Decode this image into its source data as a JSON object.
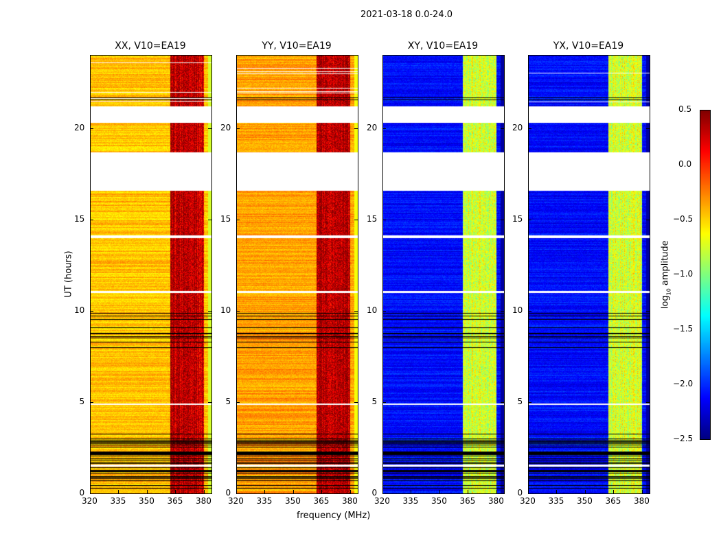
{
  "chart_data": {
    "type": "heatmap",
    "title": "2021-03-18 0.0-24.0",
    "xlabel": "frequency (MHz)",
    "ylabel": "UT (hours)",
    "xlim": [
      320,
      384
    ],
    "ylim": [
      0,
      24
    ],
    "xticks": [
      "320",
      "335",
      "350",
      "365",
      "380"
    ],
    "yticks": [
      "0",
      "5",
      "10",
      "15",
      "20"
    ],
    "colorbar": {
      "label": "log10 amplitude",
      "label_main": "log",
      "label_sub": "10",
      "label_tail": " amplitude",
      "range": [
        -2.5,
        0.5
      ],
      "ticks": [
        "0.5",
        "0.0",
        "−0.5",
        "−1.0",
        "−1.5",
        "−2.0",
        "−2.5"
      ],
      "colormap": "jet"
    },
    "flagged_white_hours": [
      [
        16.6,
        18.7
      ],
      [
        20.3,
        21.2
      ],
      [
        14.0,
        14.15
      ],
      [
        11.0,
        11.1
      ],
      [
        4.85,
        4.95
      ],
      [
        1.5,
        1.6
      ]
    ],
    "black_line_regions_hours": [
      [
        0.2,
        3.5
      ],
      [
        7.8,
        10.2
      ],
      [
        21.5,
        21.7
      ]
    ],
    "panels": [
      {
        "name": "XX, V10=EA19",
        "base": -0.45,
        "rfi_band_mhz": [
          362,
          380
        ],
        "rfi_level": 0.15
      },
      {
        "name": "YY, V10=EA19",
        "base": -0.35,
        "rfi_band_mhz": [
          362,
          380
        ],
        "rfi_level": 0.2
      },
      {
        "name": "XY, V10=EA19",
        "base": -2.1,
        "rfi_band_mhz": [
          362,
          380
        ],
        "rfi_level": -0.9
      },
      {
        "name": "YX, V10=EA19",
        "base": -2.1,
        "rfi_band_mhz": [
          362,
          380
        ],
        "rfi_level": -0.9
      }
    ]
  }
}
